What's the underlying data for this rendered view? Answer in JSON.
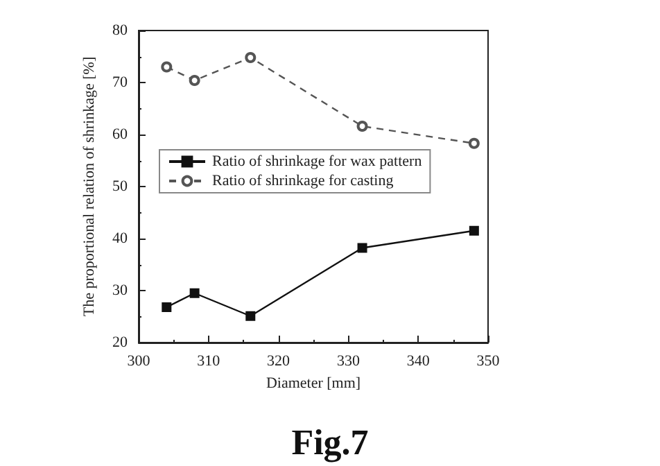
{
  "chart_data": {
    "type": "line",
    "xlabel": "Diameter [mm]",
    "ylabel": "The proportional relation of shrinkage [%]",
    "annotations": [
      "Fig.7"
    ],
    "xlim": [
      300,
      350
    ],
    "xticks": [
      300,
      310,
      320,
      330,
      340,
      350
    ],
    "ylim": [
      20,
      80
    ],
    "yticks": [
      20,
      30,
      40,
      50,
      60,
      70,
      80
    ],
    "grid": false,
    "legend": "left",
    "series": [
      {
        "name": "Ratio of shrinkage for wax pattern",
        "color": "#111111",
        "x": [
          304,
          308,
          316,
          332,
          348
        ],
        "values": [
          26.8,
          29.5,
          25.1,
          38.2,
          41.5
        ],
        "marker": "square",
        "line_style": "solid"
      },
      {
        "name": "Ratio of shrinkage for casting",
        "color": "#555555",
        "x": [
          304,
          308,
          316,
          332,
          348
        ],
        "values": [
          73.0,
          70.4,
          74.8,
          61.6,
          58.3
        ],
        "marker": "circle",
        "line_style": "dashed"
      }
    ]
  }
}
